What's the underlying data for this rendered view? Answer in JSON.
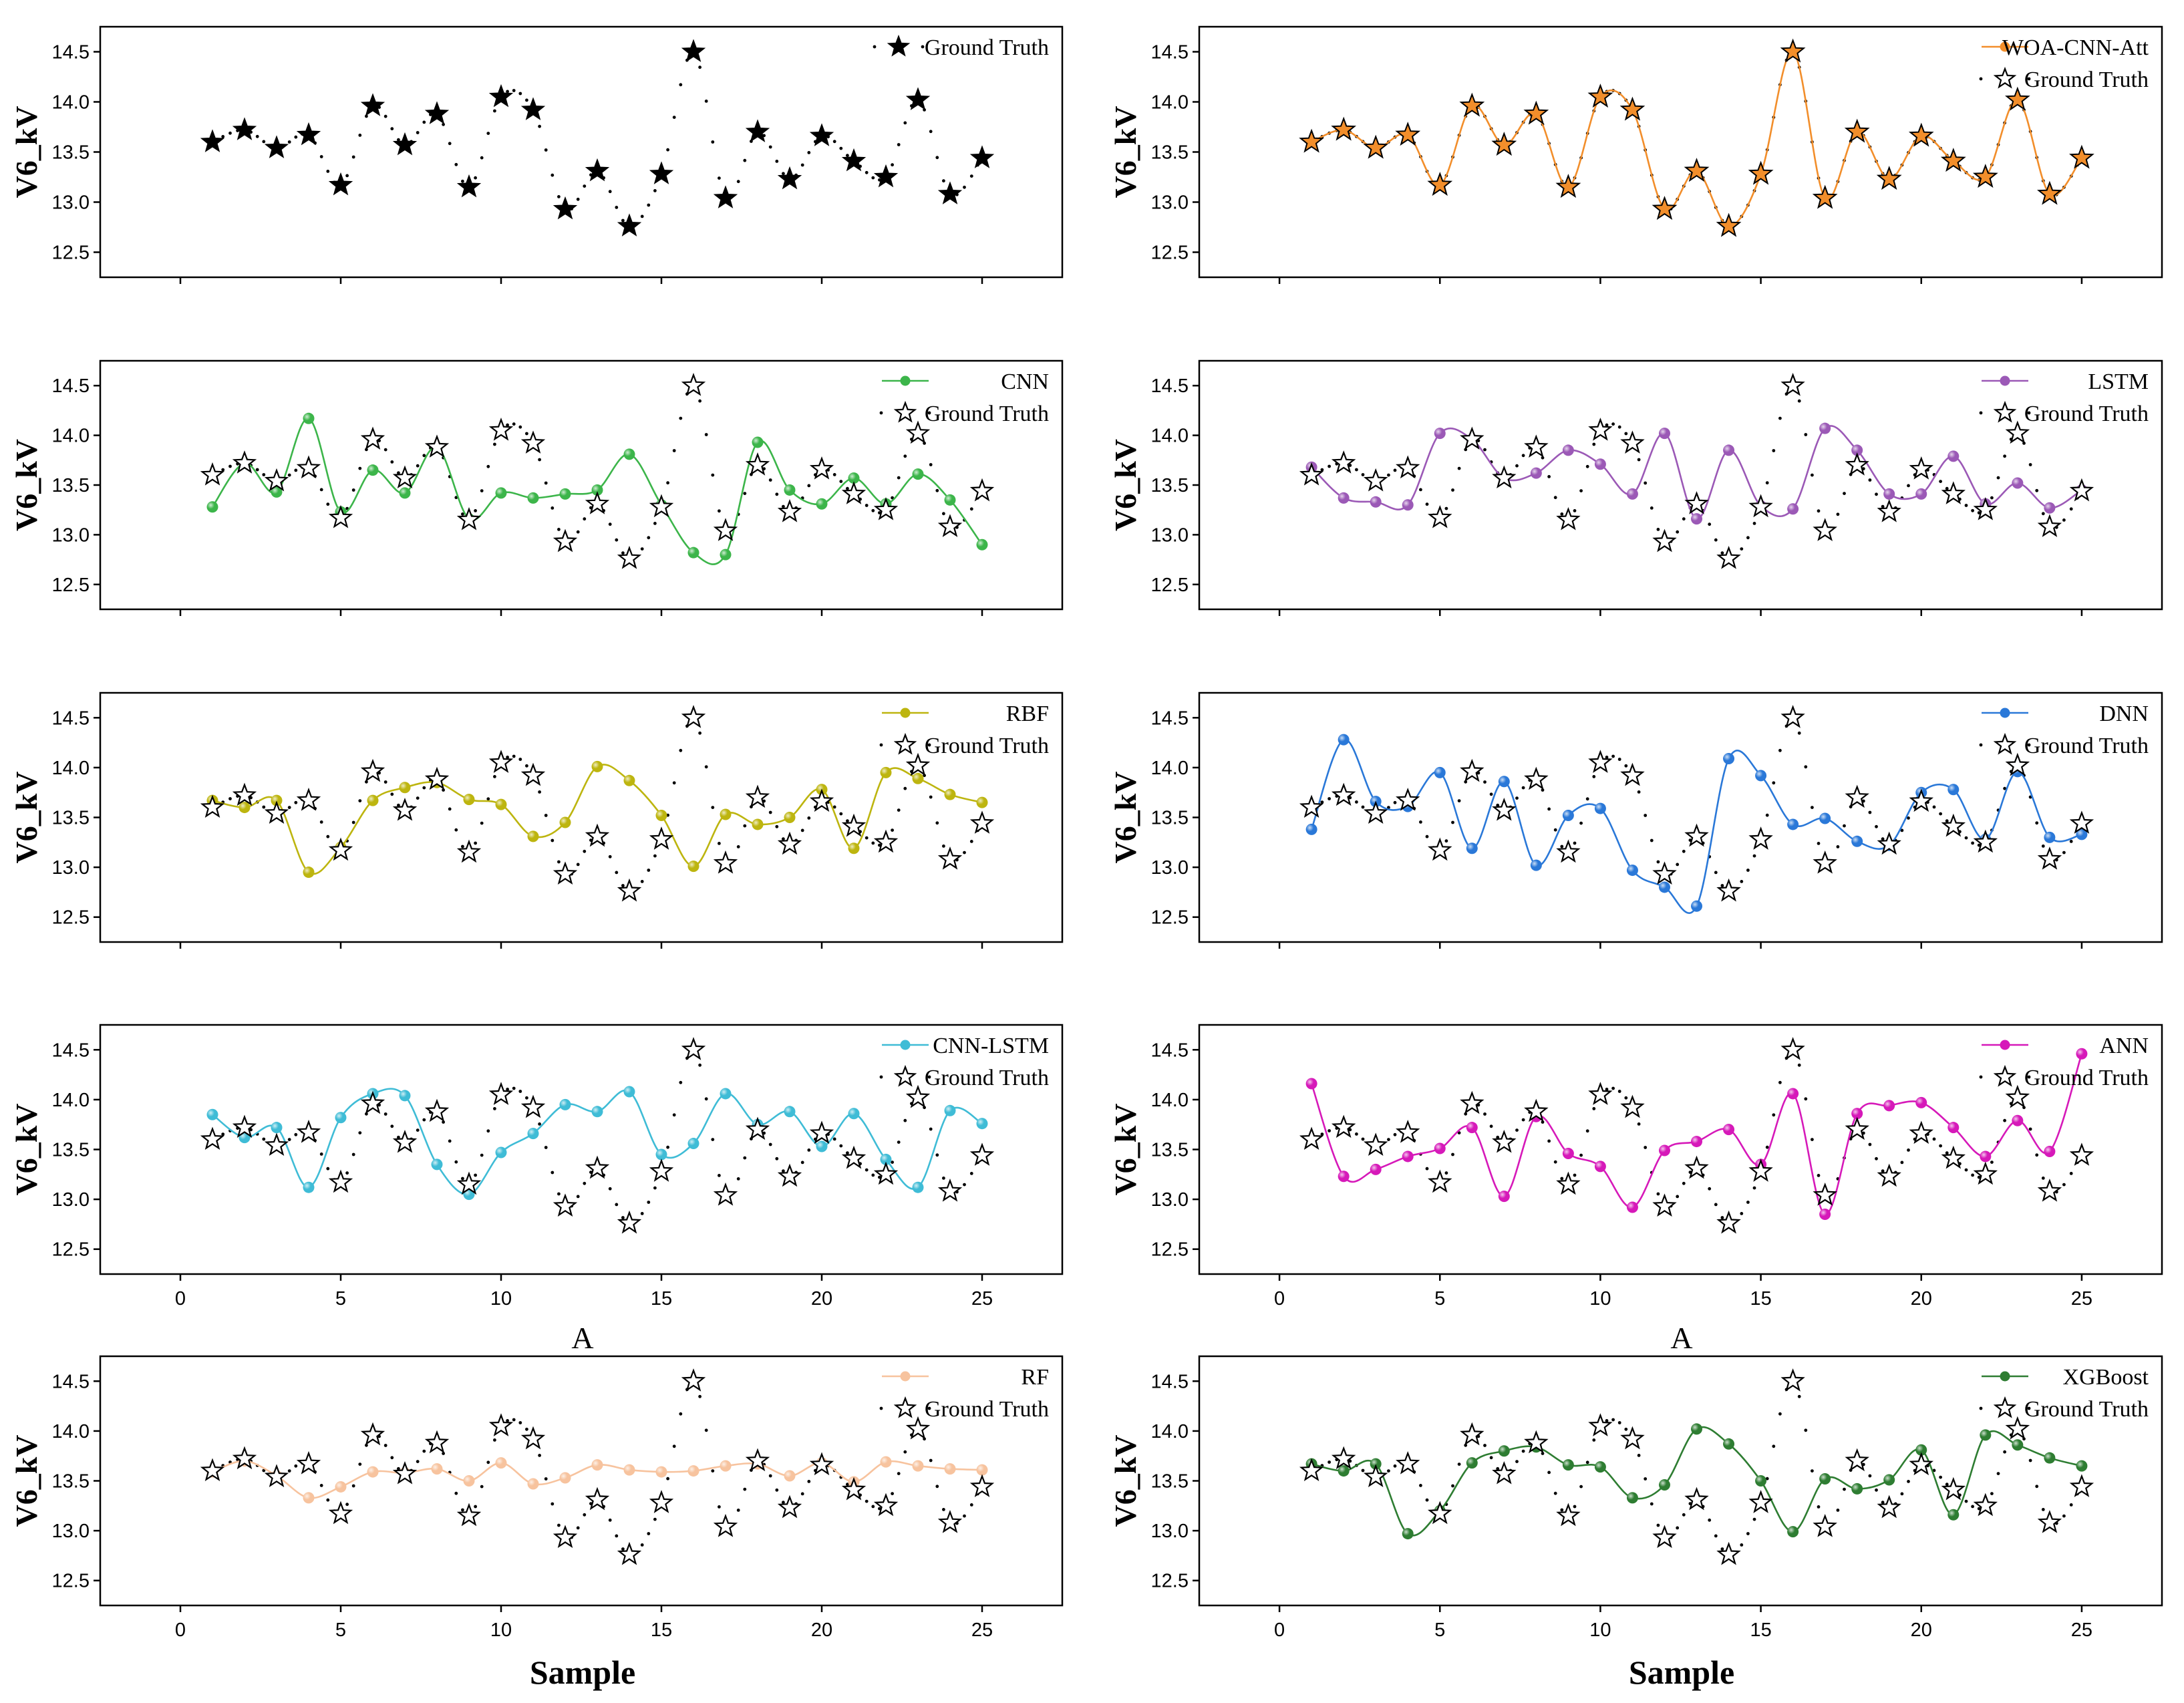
{
  "figure": {
    "mid_label": "A",
    "x_label": "Sample"
  },
  "chart_data": {
    "type": "line",
    "x": [
      1,
      2,
      3,
      4,
      5,
      6,
      7,
      8,
      9,
      10,
      11,
      12,
      13,
      14,
      15,
      16,
      17,
      18,
      19,
      20,
      21,
      22,
      23,
      24,
      25
    ],
    "ylabel": "V6_kV",
    "xlabel": "Sample",
    "xlim": [
      -2.5,
      27.5
    ],
    "ylim": [
      12.25,
      14.75
    ],
    "xticks": [
      0,
      5,
      10,
      15,
      20,
      25
    ],
    "yticks": [
      12.5,
      13.0,
      13.5,
      14.0,
      14.5
    ],
    "ytick_labels": [
      "12.5",
      "13.0",
      "13.5",
      "14.0",
      "14.5"
    ],
    "ground_truth": {
      "name": "Ground Truth",
      "values": [
        13.6,
        13.72,
        13.54,
        13.67,
        13.17,
        13.96,
        13.57,
        13.88,
        13.15,
        14.05,
        13.92,
        12.93,
        13.31,
        12.76,
        13.28,
        14.5,
        13.04,
        13.7,
        13.23,
        13.66,
        13.41,
        13.25,
        14.02,
        13.08,
        13.44
      ]
    },
    "panels": [
      {
        "id": "gt",
        "name": "Ground Truth",
        "color": "#000000",
        "values": null
      },
      {
        "id": "woa",
        "name": "WOA-CNN-Att",
        "color": "#f28e2b",
        "values": [
          13.6,
          13.72,
          13.54,
          13.67,
          13.17,
          13.96,
          13.57,
          13.88,
          13.15,
          14.05,
          13.92,
          12.93,
          13.31,
          12.76,
          13.28,
          14.5,
          13.04,
          13.7,
          13.23,
          13.66,
          13.41,
          13.25,
          14.02,
          13.08,
          13.44
        ]
      },
      {
        "id": "cnn",
        "name": "CNN",
        "color": "#3cb54a",
        "values": [
          13.28,
          13.72,
          13.43,
          14.17,
          13.23,
          13.65,
          13.42,
          13.88,
          13.16,
          13.42,
          13.37,
          13.41,
          13.45,
          13.81,
          13.3,
          12.82,
          12.8,
          13.93,
          13.45,
          13.31,
          13.57,
          13.31,
          13.61,
          13.35,
          12.9
        ]
      },
      {
        "id": "lstm",
        "name": "LSTM",
        "color": "#9b59b6",
        "values": [
          13.68,
          13.37,
          13.33,
          13.3,
          14.02,
          13.96,
          13.57,
          13.62,
          13.85,
          13.71,
          13.41,
          14.02,
          13.16,
          13.85,
          13.29,
          13.26,
          14.07,
          13.85,
          13.41,
          13.41,
          13.79,
          13.31,
          13.52,
          13.27,
          13.45
        ]
      },
      {
        "id": "rbf",
        "name": "RBF",
        "color": "#bdb50f",
        "values": [
          13.67,
          13.6,
          13.67,
          12.95,
          13.2,
          13.67,
          13.8,
          13.85,
          13.68,
          13.63,
          13.31,
          13.45,
          14.01,
          13.87,
          13.52,
          13.01,
          13.53,
          13.43,
          13.5,
          13.78,
          13.19,
          13.95,
          13.89,
          13.73,
          13.65
        ]
      },
      {
        "id": "dnn",
        "name": "DNN",
        "color": "#2a78d8",
        "values": [
          13.38,
          14.28,
          13.66,
          13.61,
          13.95,
          13.19,
          13.86,
          13.02,
          13.52,
          13.59,
          12.97,
          12.8,
          12.61,
          14.09,
          13.92,
          13.43,
          13.49,
          13.26,
          13.22,
          13.75,
          13.78,
          13.28,
          13.96,
          13.3,
          13.33
        ]
      },
      {
        "id": "cnnlstm",
        "name": "CNN-LSTM",
        "color": "#3fbcd6",
        "values": [
          13.85,
          13.62,
          13.72,
          13.12,
          13.82,
          14.06,
          14.04,
          13.35,
          13.05,
          13.47,
          13.66,
          13.95,
          13.88,
          14.08,
          13.45,
          13.56,
          14.06,
          13.75,
          13.88,
          13.53,
          13.86,
          13.4,
          13.12,
          13.89,
          13.76
        ]
      },
      {
        "id": "ann",
        "name": "ANN",
        "color": "#d619b9",
        "values": [
          14.16,
          13.23,
          13.3,
          13.43,
          13.51,
          13.72,
          13.03,
          13.83,
          13.46,
          13.33,
          12.92,
          13.49,
          13.58,
          13.7,
          13.35,
          14.06,
          12.85,
          13.86,
          13.94,
          13.97,
          13.72,
          13.43,
          13.79,
          13.48,
          14.46
        ]
      },
      {
        "id": "rf",
        "name": "RF",
        "color": "#f7c39e",
        "values": [
          13.59,
          13.7,
          13.55,
          13.33,
          13.44,
          13.59,
          13.58,
          13.62,
          13.5,
          13.68,
          13.47,
          13.53,
          13.66,
          13.61,
          13.59,
          13.6,
          13.65,
          13.67,
          13.55,
          13.68,
          13.49,
          13.69,
          13.65,
          13.62,
          13.61
        ]
      },
      {
        "id": "xgb",
        "name": "XGBoost",
        "color": "#2e7d32",
        "values": [
          13.67,
          13.6,
          13.67,
          12.97,
          13.2,
          13.68,
          13.8,
          13.84,
          13.66,
          13.64,
          13.33,
          13.46,
          14.02,
          13.87,
          13.5,
          12.99,
          13.52,
          13.42,
          13.51,
          13.81,
          13.16,
          13.96,
          13.86,
          13.73,
          13.65
        ]
      }
    ]
  }
}
